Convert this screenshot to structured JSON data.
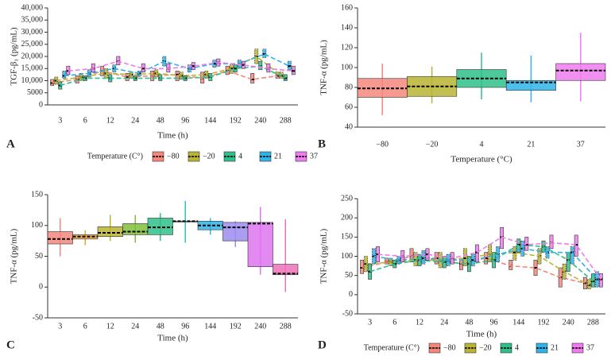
{
  "chart_data": [
    {
      "type": "box",
      "panel": "A",
      "xlabel": "Time (h)",
      "ylabel": "TGF-β₁ (pg/mL)",
      "legend": true,
      "legend_title": "Temperature (C°)",
      "lines": true,
      "categories": [
        "3",
        "6",
        "12",
        "24",
        "48",
        "96",
        "144",
        "192",
        "240",
        "288"
      ],
      "ylim": [
        0,
        40000
      ],
      "yticks": [
        0,
        5000,
        {
          "value": 10000,
          "label": "10,000"
        },
        {
          "value": 15000,
          "label": "15,000"
        },
        {
          "value": 20000,
          "label": "20,000"
        },
        {
          "value": 25000,
          "label": "25,000"
        },
        {
          "value": 30000,
          "label": "30,000"
        },
        {
          "value": 35000,
          "label": "35,000"
        },
        {
          "value": 40000,
          "label": "40,000"
        }
      ],
      "series": [
        {
          "name": "−80",
          "color": "#f4877c",
          "q1": [
            8000,
            9000,
            12000,
            10000,
            10000,
            10000,
            9000,
            12500,
            9000,
            11000
          ],
          "median": [
            9000,
            10500,
            14000,
            11500,
            12000,
            12500,
            11000,
            14000,
            10500,
            12000
          ],
          "q3": [
            10500,
            12000,
            16000,
            13000,
            14000,
            14000,
            13500,
            16000,
            13000,
            13500
          ]
        },
        {
          "name": "−20",
          "color": "#b9b433",
          "q1": [
            8500,
            10000,
            11000,
            11000,
            11500,
            10500,
            11000,
            13000,
            17000,
            11000
          ],
          "median": [
            10000,
            11500,
            13000,
            12500,
            13000,
            12000,
            12500,
            15000,
            20000,
            12000
          ],
          "q3": [
            11500,
            13000,
            15000,
            13500,
            14500,
            13500,
            14000,
            16500,
            23000,
            13500
          ]
        },
        {
          "name": "4",
          "color": "#2fbf8a",
          "q1": [
            6500,
            10000,
            9500,
            10000,
            10000,
            10000,
            10000,
            13500,
            14500,
            10000
          ],
          "median": [
            8000,
            11000,
            11000,
            11000,
            11000,
            11000,
            11500,
            15000,
            16000,
            11000
          ],
          "q3": [
            9500,
            12000,
            12500,
            12000,
            12500,
            12000,
            13000,
            16500,
            18000,
            12500
          ]
        },
        {
          "name": "21",
          "color": "#2fb4e8",
          "q1": [
            11000,
            11500,
            13500,
            12000,
            16000,
            13500,
            15500,
            15500,
            19500,
            14500
          ],
          "median": [
            12000,
            13000,
            15000,
            13000,
            18000,
            15000,
            17000,
            17000,
            21000,
            16000
          ],
          "q3": [
            14000,
            14500,
            16500,
            14000,
            20000,
            16500,
            18500,
            18500,
            23000,
            18000
          ]
        },
        {
          "name": "37",
          "color": "#ee7cee",
          "q1": [
            12500,
            13500,
            16500,
            13500,
            13500,
            14500,
            16000,
            15000,
            13500,
            12500
          ],
          "median": [
            14000,
            15000,
            18000,
            15000,
            15000,
            16000,
            17500,
            16500,
            15000,
            14000
          ],
          "q3": [
            16000,
            17000,
            20000,
            17000,
            17000,
            17500,
            19000,
            18000,
            17000,
            16000
          ]
        }
      ]
    },
    {
      "type": "box",
      "panel": "B",
      "xlabel": "Temperature (°C)",
      "ylabel": "TNF-α (pg/mL)",
      "categories": [
        "−80",
        "−20",
        "4",
        "21",
        "37"
      ],
      "ylim": [
        40,
        160
      ],
      "yticks": [
        40,
        60,
        80,
        100,
        120,
        140,
        160
      ],
      "series": [
        {
          "colors": [
            "#f4877c",
            "#b9b433",
            "#2fbf8a",
            "#2fb4e8",
            "#ee7cee"
          ],
          "low": [
            52,
            64,
            68,
            65,
            66
          ],
          "q1": [
            70,
            71,
            80,
            77,
            87
          ],
          "median": [
            79,
            81,
            89,
            85,
            97
          ],
          "q3": [
            89,
            91,
            98,
            87,
            104
          ],
          "high": [
            104,
            101,
            115,
            112,
            135
          ]
        }
      ]
    },
    {
      "type": "box",
      "panel": "C",
      "xlabel": "Time (h)",
      "ylabel": "TNF-α (pg/mL)",
      "categories": [
        "3",
        "6",
        "12",
        "24",
        "48",
        "96",
        "144",
        "192",
        "240",
        "288"
      ],
      "ylim": [
        -50,
        150
      ],
      "yticks": [
        -50,
        0,
        50,
        100,
        150
      ],
      "series": [
        {
          "colors": [
            "#f4877c",
            "#e8a23a",
            "#b9b433",
            "#7fbf3a",
            "#2fbf8a",
            "#2fc0c0",
            "#2fb4e8",
            "#9b8cf0",
            "#de74f0",
            "#f070b8"
          ],
          "low": [
            50,
            68,
            75,
            72,
            75,
            72,
            85,
            65,
            20,
            -8
          ],
          "q1": [
            70,
            78,
            82,
            85,
            85,
            107,
            93,
            75,
            33,
            20
          ],
          "median": [
            78,
            82,
            88,
            90,
            97,
            107,
            100,
            97,
            103,
            22
          ],
          "q3": [
            90,
            85,
            98,
            103,
            112,
            107,
            107,
            105,
            105,
            37
          ],
          "high": [
            112,
            92,
            117,
            117,
            120,
            140,
            112,
            107,
            130,
            110
          ]
        }
      ]
    },
    {
      "type": "box",
      "panel": "D",
      "xlabel": "Time (h)",
      "ylabel": "TNF-α (pg/mL)",
      "legend": true,
      "legend_title": "Temperature (C°)",
      "lines": true,
      "categories": [
        "3",
        "6",
        "12",
        "24",
        "48",
        "96",
        "144",
        "192",
        "240",
        "288"
      ],
      "ylim": [
        -50,
        250
      ],
      "yticks": [
        -50,
        0,
        50,
        100,
        150,
        200,
        250
      ],
      "series": [
        {
          "name": "−80",
          "color": "#f4877c",
          "q1": [
            55,
            80,
            85,
            80,
            65,
            80,
            65,
            50,
            20,
            15
          ],
          "median": [
            70,
            85,
            100,
            95,
            80,
            95,
            75,
            70,
            45,
            30
          ],
          "q3": [
            90,
            95,
            120,
            110,
            95,
            110,
            90,
            90,
            70,
            45
          ]
        },
        {
          "name": "−20",
          "color": "#b9b433",
          "q1": [
            60,
            75,
            75,
            70,
            75,
            85,
            90,
            80,
            40,
            15
          ],
          "median": [
            80,
            85,
            90,
            90,
            95,
            105,
            110,
            100,
            60,
            25
          ],
          "q3": [
            100,
            95,
            110,
            110,
            120,
            130,
            125,
            120,
            80,
            40
          ]
        },
        {
          "name": "4",
          "color": "#2fbf8a",
          "q1": [
            40,
            70,
            75,
            70,
            60,
            70,
            110,
            110,
            60,
            20
          ],
          "median": [
            60,
            80,
            90,
            85,
            80,
            90,
            130,
            125,
            90,
            35
          ],
          "q3": [
            80,
            90,
            105,
            100,
            100,
            110,
            145,
            140,
            110,
            55
          ]
        },
        {
          "name": "21",
          "color": "#2fb4e8",
          "q1": [
            80,
            80,
            80,
            75,
            75,
            85,
            100,
            95,
            80,
            20
          ],
          "median": [
            100,
            90,
            95,
            90,
            90,
            105,
            120,
            110,
            110,
            40
          ],
          "q3": [
            120,
            100,
            115,
            105,
            105,
            125,
            140,
            125,
            125,
            60
          ]
        },
        {
          "name": "37",
          "color": "#ee7cee",
          "q1": [
            85,
            85,
            90,
            80,
            85,
            120,
            115,
            120,
            100,
            20
          ],
          "median": [
            105,
            100,
            105,
            95,
            110,
            150,
            130,
            135,
            130,
            40
          ],
          "q3": [
            125,
            115,
            120,
            110,
            130,
            175,
            150,
            155,
            155,
            55
          ]
        }
      ]
    }
  ]
}
